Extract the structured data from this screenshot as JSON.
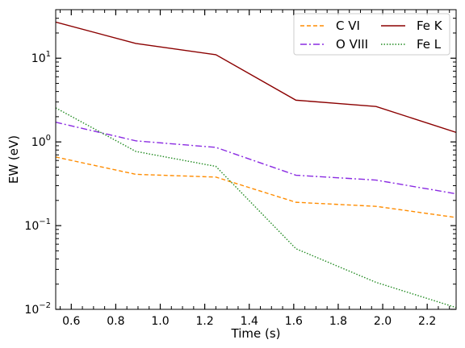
{
  "chart_data": {
    "type": "line",
    "title": "",
    "xlabel": "Time (s)",
    "ylabel": "EW (eV)",
    "xlim": [
      0.53,
      2.33
    ],
    "ylim": [
      0.01,
      38
    ],
    "yscale": "log",
    "grid": false,
    "legend_placement": "top-right",
    "legend_columns": 2,
    "x_ticks": [
      0.6,
      0.8,
      1.0,
      1.2,
      1.4,
      1.6,
      1.8,
      2.0,
      2.2
    ],
    "x_tick_labels": [
      "0.6",
      "0.8",
      "1.0",
      "1.2",
      "1.4",
      "1.6",
      "1.8",
      "2.0",
      "2.2"
    ],
    "y_ticks": [
      0.01,
      0.1,
      1,
      10
    ],
    "y_tick_labels": [
      {
        "base": "10",
        "exp": "−2"
      },
      {
        "base": "10",
        "exp": "−1"
      },
      {
        "base": "10",
        "exp": "0"
      },
      {
        "base": "10",
        "exp": "1"
      }
    ],
    "x": [
      0.53,
      0.89,
      1.25,
      1.61,
      1.97,
      2.33
    ],
    "series": [
      {
        "name": "C VI",
        "color": "#ff8c00",
        "dash": "dashed",
        "values": [
          0.66,
          0.41,
          0.38,
          0.19,
          0.17,
          0.125
        ]
      },
      {
        "name": "O VIII",
        "color": "#8a2be2",
        "dash": "dashdot",
        "values": [
          1.72,
          1.03,
          0.86,
          0.4,
          0.35,
          0.24
        ]
      },
      {
        "name": "Fe K",
        "color": "#8b0000",
        "dash": "solid",
        "values": [
          27,
          15,
          11,
          3.15,
          2.65,
          1.3
        ]
      },
      {
        "name": "Fe L",
        "color": "#228b22",
        "dash": "dotted",
        "values": [
          2.55,
          0.77,
          0.51,
          0.053,
          0.021,
          0.0105
        ]
      }
    ]
  }
}
